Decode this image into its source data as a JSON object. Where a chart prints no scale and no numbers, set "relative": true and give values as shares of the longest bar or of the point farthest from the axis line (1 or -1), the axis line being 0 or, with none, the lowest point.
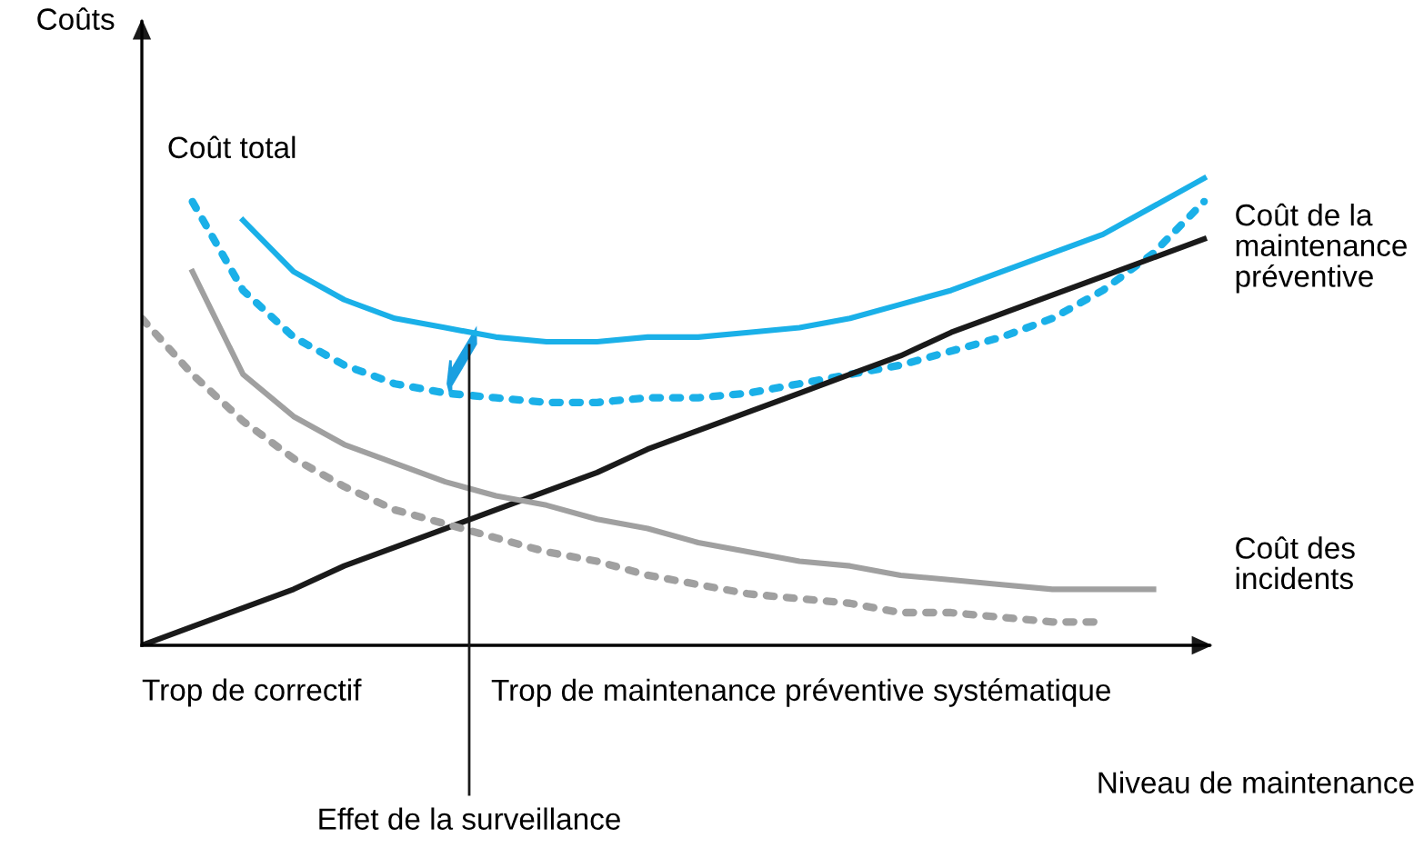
{
  "chart_data": {
    "type": "line",
    "relative": true,
    "ylabel": "Coûts",
    "xlabel": "Niveau de maintenance",
    "categories": [
      null,
      null,
      null,
      null,
      null,
      null,
      null,
      null,
      null,
      null,
      null,
      null,
      null,
      null,
      null,
      null,
      null,
      null,
      null,
      null,
      null,
      null
    ],
    "series": [
      {
        "name": "Coût total",
        "color": "#1ab0e8",
        "line_style": "solid",
        "values": [
          null,
          null,
          0.91,
          0.8,
          0.74,
          0.7,
          0.68,
          0.66,
          0.65,
          0.65,
          0.66,
          0.66,
          0.67,
          0.68,
          0.7,
          0.73,
          0.76,
          0.8,
          0.84,
          0.88,
          0.94,
          1.0
        ]
      },
      {
        "color": "#1ab0e8",
        "line_style": "dotted",
        "values": [
          null,
          0.95,
          0.76,
          0.66,
          0.6,
          0.56,
          0.54,
          0.53,
          0.52,
          0.52,
          0.53,
          0.53,
          0.54,
          0.56,
          0.58,
          0.6,
          0.63,
          0.66,
          0.7,
          0.76,
          0.84,
          0.95
        ]
      },
      {
        "name": "Coût de la maintenance préventive",
        "color": "#1a1a1a",
        "line_style": "solid",
        "values": [
          0,
          0.04,
          0.08,
          0.12,
          0.17,
          0.21,
          0.25,
          0.29,
          0.33,
          0.37,
          0.42,
          0.46,
          0.5,
          0.54,
          0.58,
          0.62,
          0.67,
          0.71,
          0.75,
          0.79,
          0.83,
          0.87
        ]
      },
      {
        "name": "Coût des incidents",
        "color": "#a0a0a0",
        "line_style": "solid",
        "values": [
          null,
          0.8,
          0.58,
          0.49,
          0.43,
          0.39,
          0.35,
          0.32,
          0.3,
          0.27,
          0.25,
          0.22,
          0.2,
          0.18,
          0.17,
          0.15,
          0.14,
          0.13,
          0.12,
          0.12,
          0.12,
          null
        ]
      },
      {
        "color": "#a0a0a0",
        "line_style": "dotted",
        "values": [
          0.7,
          0.58,
          0.48,
          0.4,
          0.34,
          0.29,
          0.26,
          0.23,
          0.2,
          0.18,
          0.15,
          0.13,
          0.11,
          0.1,
          0.09,
          0.07,
          0.07,
          0.06,
          0.05,
          0.05,
          null,
          null
        ]
      }
    ],
    "annotations": [
      "Trop de correctif",
      "Trop de maintenance préventive systématique",
      "Effet de la surveillance"
    ],
    "marker": "none"
  }
}
